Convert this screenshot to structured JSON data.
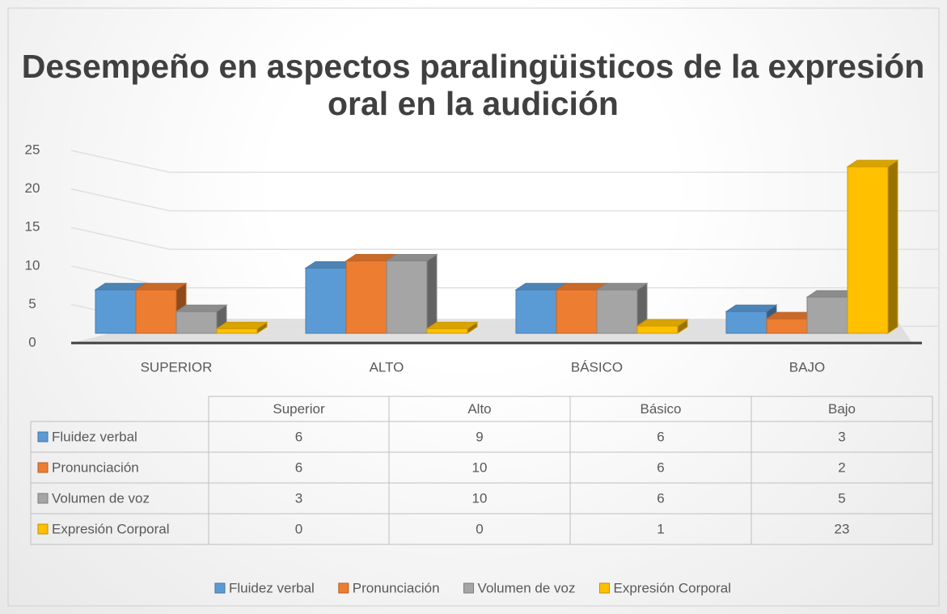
{
  "chart_data": {
    "type": "bar3d",
    "title": "Desempeño en aspectos paralingüisticos de la expresión oral en la audición",
    "categories": [
      "SUPERIOR",
      "ALTO",
      "BÁSICO",
      "BAJO"
    ],
    "series": [
      {
        "name": "Fluidez verbal",
        "color": "#5b9bd5",
        "values": [
          6,
          9,
          6,
          3
        ]
      },
      {
        "name": "Pronunciación",
        "color": "#ed7d31",
        "values": [
          6,
          10,
          6,
          2
        ]
      },
      {
        "name": "Volumen de voz",
        "color": "#a5a5a5",
        "values": [
          3,
          10,
          6,
          5
        ]
      },
      {
        "name": "Expresión Corporal",
        "color": "#ffc000",
        "values": [
          0,
          0,
          1,
          23
        ]
      }
    ],
    "ylim": [
      0,
      25
    ],
    "yticks": [
      0,
      5,
      10,
      15,
      20,
      25
    ],
    "grid": true,
    "legend": "bottom",
    "data_table": {
      "columns": [
        "Superior",
        "Alto",
        "Básico",
        "Bajo"
      ]
    }
  }
}
